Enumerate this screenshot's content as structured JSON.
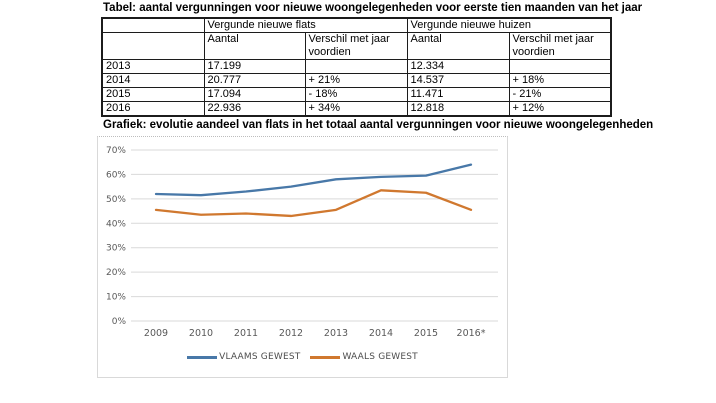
{
  "table_section": {
    "title": "Tabel: aantal vergunningen voor nieuwe woongelegenheden voor eerste tien maanden van het jaar",
    "table": {
      "group_headers": [
        "",
        "Vergunde nieuwe flats",
        "Vergunde nieuwe huizen"
      ],
      "sub_headers": [
        "",
        "Aantal",
        "Verschil met jaar voordien",
        "Aantal",
        "Verschil met jaar voordien"
      ],
      "rows": [
        [
          "2013",
          "17.199",
          "",
          "12.334",
          ""
        ],
        [
          "2014",
          "20.777",
          "+ 21%",
          "14.537",
          "+ 18%"
        ],
        [
          "2015",
          "17.094",
          "- 18%",
          "11.471",
          "- 21%"
        ],
        [
          "2016",
          "22.936",
          "+ 34%",
          "12.818",
          "+ 12%"
        ]
      ]
    }
  },
  "chart_section": {
    "title": "Grafiek: evolutie aandeel van flats in het totaal aantal vergunningen voor nieuwe woongelegenheden"
  },
  "chart_data": {
    "type": "line",
    "x": [
      "2009",
      "2010",
      "2011",
      "2012",
      "2013",
      "2014",
      "2015",
      "2016*"
    ],
    "series": [
      {
        "name": "VLAAMS GEWEST",
        "color": "#4878a8",
        "values": [
          52,
          51.5,
          53,
          55,
          58,
          59,
          59.5,
          64
        ]
      },
      {
        "name": "WAALS GEWEST",
        "color": "#d0782f",
        "values": [
          45.5,
          43.5,
          44,
          43,
          45.5,
          53.5,
          52.5,
          45.5
        ]
      }
    ],
    "title": "",
    "xlabel": "",
    "ylabel": "",
    "y_ticks": [
      "0%",
      "10%",
      "20%",
      "30%",
      "40%",
      "50%",
      "60%",
      "70%"
    ],
    "ylim": [
      0,
      70
    ],
    "grid": true,
    "legend_position": "bottom",
    "gridline_color": "#d9d9d9",
    "label_color": "#595959"
  }
}
